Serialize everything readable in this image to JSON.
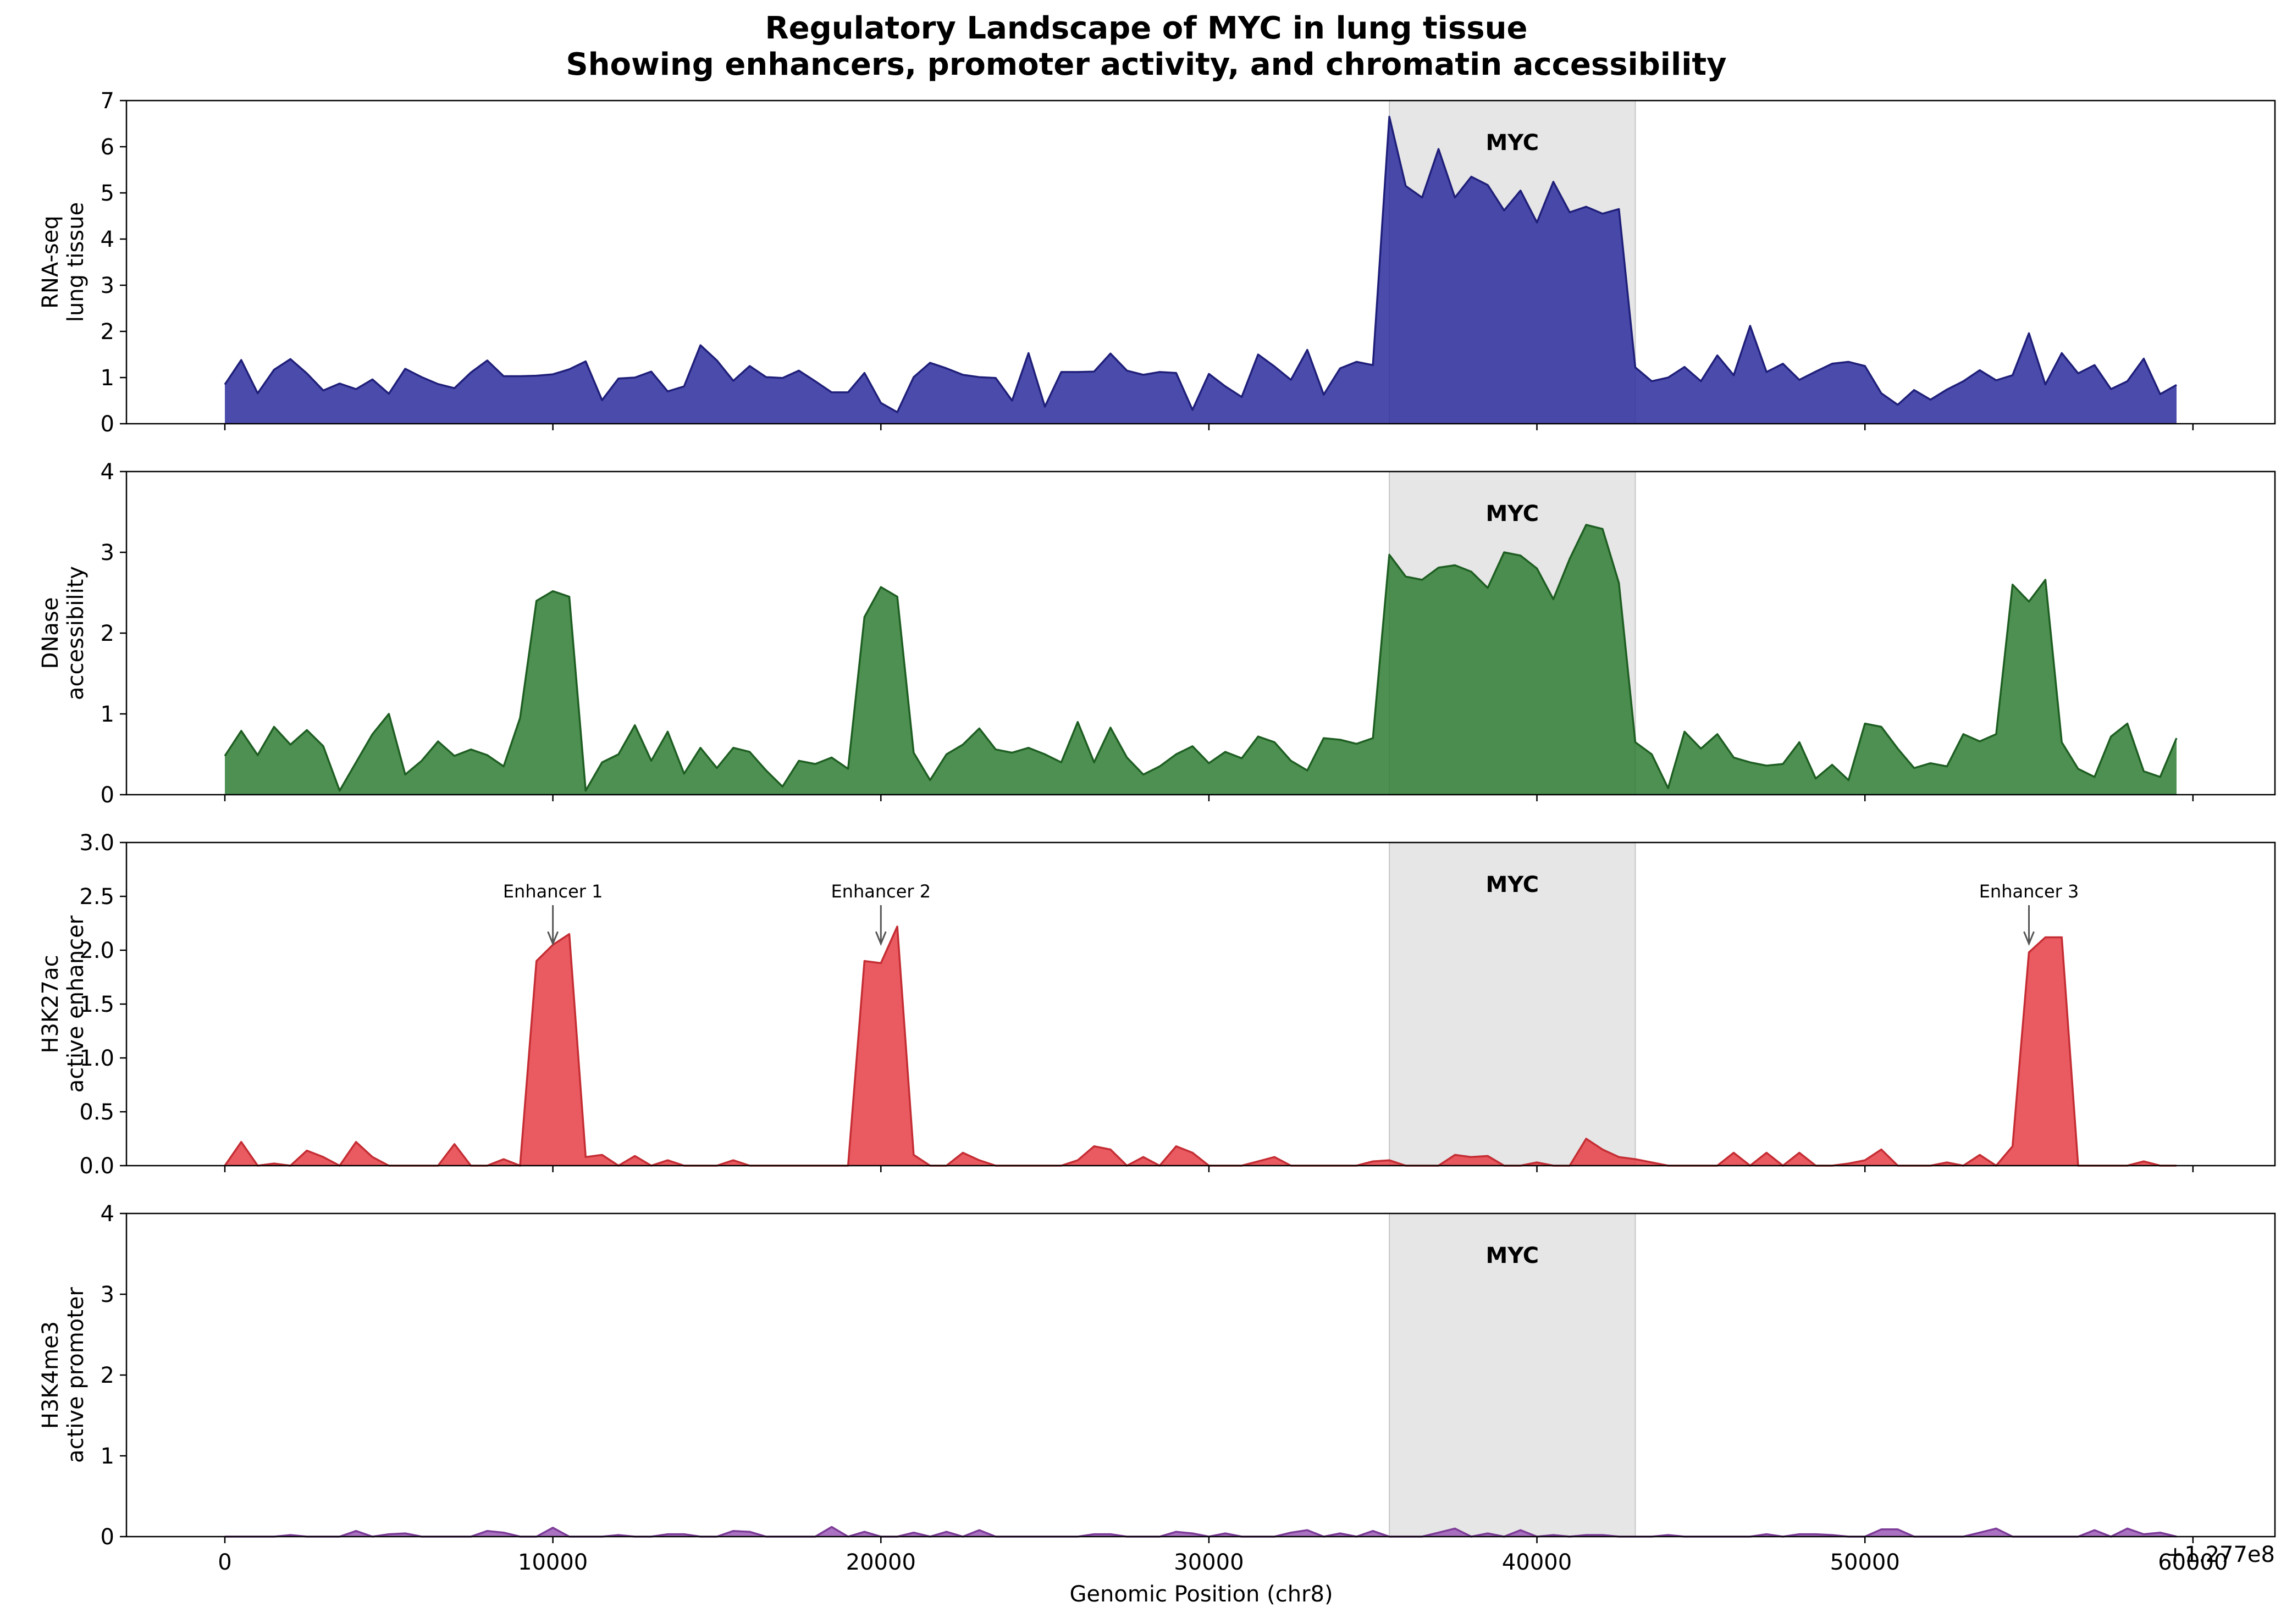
{
  "figure": {
    "title_line1": "Regulatory Landscape of MYC in lung tissue",
    "title_line2": "Showing enhancers, promoter activity, and chromatin accessibility"
  },
  "chart_data": {
    "type": "area",
    "xlabel": "Genomic Position (chr8)",
    "x_offset_label": "+1.277e8",
    "xlim": [
      -3000,
      62500
    ],
    "x_ticks": [
      0,
      10000,
      20000,
      30000,
      40000,
      50000,
      60000
    ],
    "grid": false,
    "shared_x_axis": true,
    "gene_region": {
      "label": "MYC",
      "start": 35500,
      "end": 43000
    },
    "x": [
      0,
      500,
      1000,
      1500,
      2000,
      2500,
      3000,
      3500,
      4000,
      4500,
      5000,
      5500,
      6000,
      6500,
      7000,
      7500,
      8000,
      8500,
      9000,
      9500,
      10000,
      10500,
      11000,
      11500,
      12000,
      12500,
      13000,
      13500,
      14000,
      14500,
      15000,
      15500,
      16000,
      16500,
      17000,
      17500,
      18000,
      18500,
      19000,
      19500,
      20000,
      20500,
      21000,
      21500,
      22000,
      22500,
      23000,
      23500,
      24000,
      24500,
      25000,
      25500,
      26000,
      26500,
      27000,
      27500,
      28000,
      28500,
      29000,
      29500,
      30000,
      30500,
      31000,
      31500,
      32000,
      32500,
      33000,
      33500,
      34000,
      34500,
      35000,
      35500,
      36000,
      36500,
      37000,
      37500,
      38000,
      38500,
      39000,
      39500,
      40000,
      40500,
      41000,
      41500,
      42000,
      42500,
      43000,
      43500,
      44000,
      44500,
      45000,
      45500,
      46000,
      46500,
      47000,
      47500,
      48000,
      48500,
      49000,
      49500,
      50000,
      50500,
      51000,
      51500,
      52000,
      52500,
      53000,
      53500,
      54000,
      54500,
      55000,
      55500,
      56000,
      56500,
      57000,
      57500,
      58000,
      58500,
      59000,
      59500
    ],
    "tracks": [
      {
        "ylabel_line1": "RNA-seq",
        "ylabel_line2": "lung tissue",
        "ylim": [
          0,
          7
        ],
        "y_ticks": [
          0,
          1,
          2,
          3,
          4,
          5,
          6,
          7
        ],
        "fill_color": "#2b2b9e",
        "line_color": "#1f1f7a",
        "values": [
          0.85,
          1.38,
          0.66,
          1.17,
          1.4,
          1.09,
          0.72,
          0.87,
          0.75,
          0.96,
          0.65,
          1.19,
          1.01,
          0.86,
          0.77,
          1.11,
          1.37,
          1.03,
          1.03,
          1.04,
          1.07,
          1.18,
          1.35,
          0.51,
          0.98,
          1.0,
          1.13,
          0.7,
          0.81,
          1.7,
          1.37,
          0.93,
          1.25,
          1.01,
          0.99,
          1.15,
          0.92,
          0.68,
          0.68,
          1.1,
          0.45,
          0.25,
          1.01,
          1.32,
          1.2,
          1.06,
          1.01,
          0.99,
          0.5,
          1.53,
          0.37,
          1.12,
          1.12,
          1.13,
          1.52,
          1.15,
          1.06,
          1.12,
          1.1,
          0.3,
          1.08,
          0.81,
          0.58,
          1.5,
          1.24,
          0.95,
          1.6,
          0.63,
          1.2,
          1.34,
          1.27,
          6.65,
          5.15,
          4.9,
          5.95,
          4.9,
          5.35,
          5.17,
          4.62,
          5.05,
          4.36,
          5.24,
          4.58,
          4.7,
          4.55,
          4.65,
          1.22,
          0.92,
          1.0,
          1.23,
          0.92,
          1.48,
          1.05,
          2.12,
          1.12,
          1.3,
          0.95,
          1.13,
          1.3,
          1.34,
          1.25,
          0.66,
          0.41,
          0.73,
          0.52,
          0.74,
          0.92,
          1.16,
          0.94,
          1.05,
          1.96,
          0.85,
          1.53,
          1.09,
          1.27,
          0.75,
          0.92,
          1.41,
          0.64,
          0.84
        ]
      },
      {
        "ylabel_line1": "DNase",
        "ylabel_line2": "accessibility",
        "ylim": [
          0,
          4
        ],
        "y_ticks": [
          0,
          1,
          2,
          3,
          4
        ],
        "fill_color": "#2e7d32",
        "line_color": "#1e5e22",
        "values": [
          0.48,
          0.79,
          0.49,
          0.84,
          0.62,
          0.8,
          0.6,
          0.05,
          0.4,
          0.75,
          1.0,
          0.25,
          0.42,
          0.66,
          0.48,
          0.56,
          0.49,
          0.35,
          0.95,
          2.4,
          2.52,
          2.45,
          0.05,
          0.4,
          0.5,
          0.86,
          0.42,
          0.78,
          0.26,
          0.58,
          0.33,
          0.58,
          0.53,
          0.3,
          0.1,
          0.42,
          0.38,
          0.46,
          0.32,
          2.2,
          2.57,
          2.45,
          0.52,
          0.18,
          0.5,
          0.62,
          0.82,
          0.56,
          0.52,
          0.58,
          0.5,
          0.4,
          0.9,
          0.4,
          0.83,
          0.46,
          0.25,
          0.35,
          0.5,
          0.6,
          0.39,
          0.53,
          0.45,
          0.72,
          0.65,
          0.42,
          0.3,
          0.7,
          0.68,
          0.63,
          0.7,
          2.97,
          2.7,
          2.66,
          2.81,
          2.84,
          2.76,
          2.56,
          3.0,
          2.96,
          2.8,
          2.42,
          2.92,
          3.34,
          3.29,
          2.62,
          0.65,
          0.5,
          0.08,
          0.78,
          0.57,
          0.75,
          0.46,
          0.4,
          0.36,
          0.38,
          0.65,
          0.2,
          0.37,
          0.18,
          0.88,
          0.84,
          0.57,
          0.33,
          0.39,
          0.35,
          0.75,
          0.66,
          0.75,
          2.6,
          2.39,
          2.66,
          0.65,
          0.32,
          0.22,
          0.72,
          0.88,
          0.29,
          0.22,
          0.7
        ]
      },
      {
        "ylabel_line1": "H3K27ac",
        "ylabel_line2": "active enhancer",
        "ylim": [
          0,
          3.0
        ],
        "y_ticks": [
          0.0,
          0.5,
          1.0,
          1.5,
          2.0,
          2.5,
          3.0
        ],
        "fill_color": "#e53e45",
        "line_color": "#c42d33",
        "values": [
          0.0,
          0.22,
          0.0,
          0.02,
          0.0,
          0.14,
          0.08,
          0.0,
          0.22,
          0.08,
          0.0,
          0.0,
          0.0,
          0.0,
          0.2,
          0.0,
          0.0,
          0.06,
          0.0,
          1.9,
          2.05,
          2.15,
          0.08,
          0.1,
          0.0,
          0.09,
          0.0,
          0.05,
          0.0,
          0.0,
          0.0,
          0.05,
          0.0,
          0.0,
          0.0,
          0.0,
          0.0,
          0.0,
          0.0,
          1.9,
          1.88,
          2.22,
          0.1,
          0.0,
          0.0,
          0.12,
          0.05,
          0.0,
          0.0,
          0.0,
          0.0,
          0.0,
          0.05,
          0.18,
          0.15,
          0.0,
          0.08,
          0.0,
          0.18,
          0.12,
          0.0,
          0.0,
          0.0,
          0.04,
          0.08,
          0.0,
          0.0,
          0.0,
          0.0,
          0.0,
          0.04,
          0.05,
          0.0,
          0.0,
          0.0,
          0.1,
          0.08,
          0.09,
          0.0,
          0.0,
          0.03,
          0.0,
          0.0,
          0.25,
          0.15,
          0.08,
          0.06,
          0.03,
          0.0,
          0.0,
          0.0,
          0.0,
          0.12,
          0.0,
          0.12,
          0.0,
          0.12,
          0.0,
          0.0,
          0.02,
          0.05,
          0.15,
          0.0,
          0.0,
          0.0,
          0.03,
          0.0,
          0.1,
          0.0,
          0.18,
          1.98,
          2.12,
          2.12,
          0.0,
          0.0,
          0.0,
          0.0,
          0.04,
          0.0,
          0.0,
          0.02
        ]
      },
      {
        "ylabel_line1": "H3K4me3",
        "ylabel_line2": "active promoter",
        "ylim": [
          0,
          4
        ],
        "y_ticks": [
          0,
          1,
          2,
          3,
          4
        ],
        "fill_color": "#9b59b6",
        "line_color": "#7d3c98",
        "values": [
          0.0,
          0.0,
          0.0,
          0.0,
          0.02,
          0.0,
          0.0,
          0.0,
          0.07,
          0.0,
          0.03,
          0.04,
          0.0,
          0.0,
          0.0,
          0.0,
          0.07,
          0.05,
          0.0,
          0.0,
          0.11,
          0.0,
          0.0,
          0.0,
          0.02,
          0.0,
          0.0,
          0.03,
          0.03,
          0.0,
          0.0,
          0.07,
          0.06,
          0.0,
          0.0,
          0.0,
          0.0,
          0.12,
          0.0,
          0.06,
          0.0,
          0.0,
          0.05,
          0.0,
          0.06,
          0.0,
          0.08,
          0.0,
          0.0,
          0.0,
          0.0,
          0.0,
          0.0,
          0.03,
          0.03,
          0.0,
          0.0,
          0.0,
          0.06,
          0.04,
          0.0,
          0.04,
          0.0,
          0.0,
          0.0,
          0.05,
          0.08,
          0.0,
          0.04,
          0.0,
          0.07,
          0.0,
          0.0,
          0.0,
          0.05,
          0.1,
          0.0,
          0.04,
          0.0,
          0.08,
          0.0,
          0.02,
          0.0,
          0.02,
          0.02,
          0.0,
          0.0,
          0.0,
          0.02,
          0.0,
          0.0,
          0.0,
          0.0,
          0.0,
          0.03,
          0.0,
          0.03,
          0.03,
          0.02,
          0.0,
          0.0,
          0.09,
          0.09,
          0.0,
          0.0,
          0.0,
          0.0,
          0.05,
          0.1,
          0.0,
          0.0,
          0.0,
          0.0,
          0.0,
          0.08,
          0.0,
          0.1,
          0.03,
          0.05,
          0.0
        ],
        "annotations": []
      }
    ],
    "annotations": [
      {
        "track": 2,
        "label": "Enhancer 1",
        "x": 10000,
        "y": 2.05
      },
      {
        "track": 2,
        "label": "Enhancer 2",
        "x": 20000,
        "y": 2.05
      },
      {
        "track": 2,
        "label": "Enhancer 3",
        "x": 55000,
        "y": 2.05
      }
    ]
  }
}
